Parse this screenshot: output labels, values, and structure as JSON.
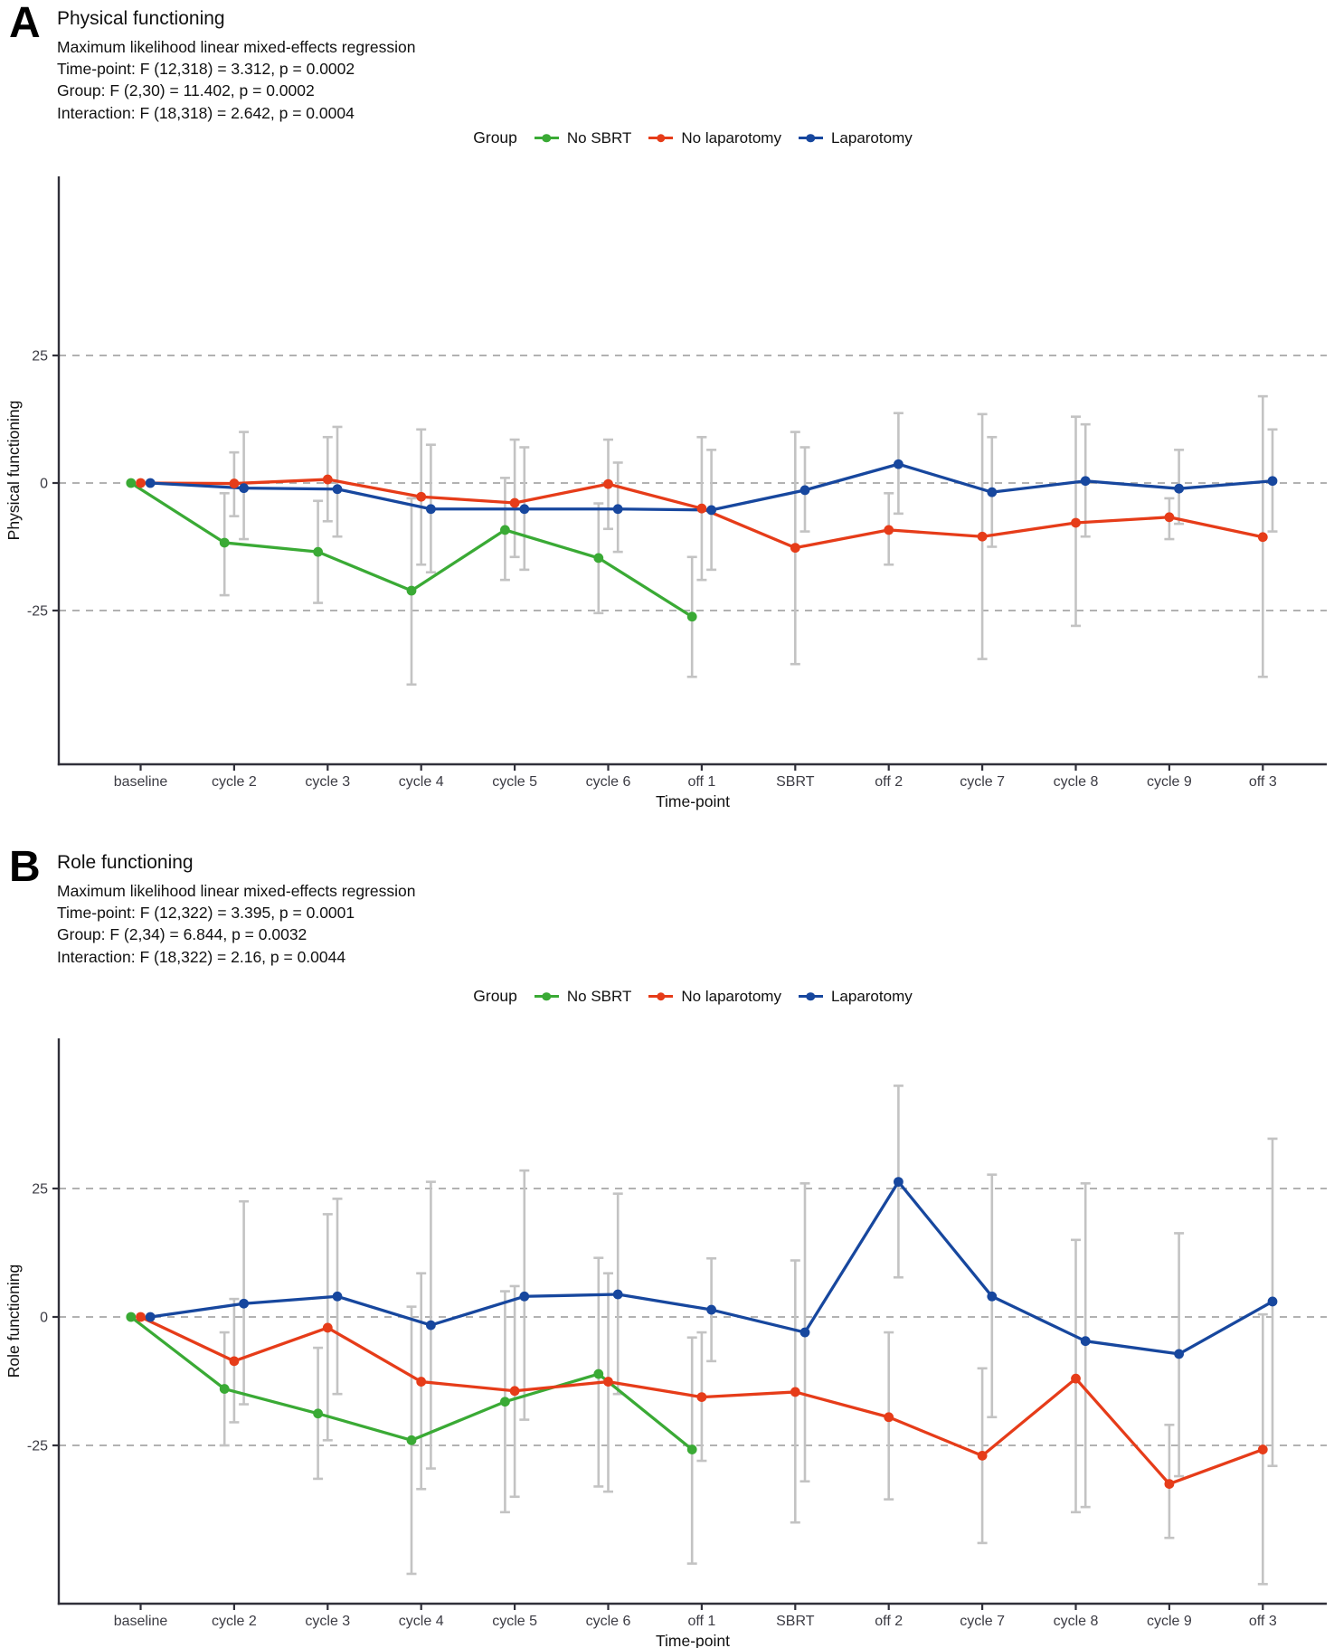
{
  "style": {
    "grid_color": "#a8a8a8",
    "axis_color": "#30303a",
    "errorbar_color": "#c3c3c3",
    "text_color": "#111111",
    "tick_text_color": "#3c3c44"
  },
  "chart_data": [
    {
      "type": "line",
      "letter": "A",
      "title": "Physical functioning",
      "subtitle_lines": [
        "Maximum likelihood linear mixed-effects regression",
        "Time-point: F (12,318) = 3.312, p = 0.0002",
        "Group: F (2,30) = 11.402, p = 0.0002",
        "Interaction: F (18,318) = 2.642, p = 0.0004"
      ],
      "legend_title": "Group",
      "legend_position": "top-center",
      "xlabel": "Time-point",
      "ylabel": "Physical functioning",
      "grid": "dashed-horizontal",
      "yticks": [
        25,
        0,
        -25
      ],
      "ylim": [
        -55,
        60
      ],
      "categories": [
        "baseline",
        "cycle 2",
        "cycle 3",
        "cycle 4",
        "cycle 5",
        "cycle 6",
        "off 1",
        "SBRT",
        "off 2",
        "cycle 7",
        "cycle 8",
        "cycle 9",
        "off 3"
      ],
      "series": [
        {
          "name": "No SBRT",
          "color": "#3aaa35",
          "values": [
            0,
            -11.7,
            -13.5,
            -21.1,
            -9.2,
            -14.7,
            -26.2,
            null,
            null,
            null,
            null,
            null,
            null
          ],
          "ci": [
            null,
            [
              -22,
              -2
            ],
            [
              -23.5,
              -3.5
            ],
            [
              -39.5,
              -3
            ],
            [
              -19,
              1
            ],
            [
              -25.5,
              -4
            ],
            [
              -38,
              -14.5
            ],
            null,
            null,
            null,
            null,
            null,
            null
          ]
        },
        {
          "name": "No laparotomy",
          "color": "#e63c19",
          "values": [
            0,
            -0.1,
            0.7,
            -2.7,
            -3.9,
            -0.2,
            -5,
            -12.7,
            -9.2,
            -10.5,
            -7.8,
            -6.7,
            -10.6
          ],
          "ci": [
            null,
            [
              -6.5,
              6
            ],
            [
              -7.5,
              9
            ],
            [
              -16,
              10.5
            ],
            [
              -14.5,
              8.5
            ],
            [
              -9,
              8.5
            ],
            [
              -19,
              9
            ],
            [
              -35.5,
              10
            ],
            [
              -16,
              -2
            ],
            [
              -34.5,
              13.5
            ],
            [
              -28,
              13
            ],
            [
              -11,
              -3
            ],
            [
              -38,
              17
            ]
          ]
        },
        {
          "name": "Laparotomy",
          "color": "#17479e",
          "values": [
            0,
            -1,
            -1.2,
            -5.1,
            -5.1,
            -5.1,
            -5.3,
            -1.4,
            3.7,
            -1.8,
            0.4,
            -1.1,
            0.4
          ],
          "ci": [
            null,
            [
              -11,
              10
            ],
            [
              -10.5,
              11
            ],
            [
              -17.5,
              7.5
            ],
            [
              -17,
              7
            ],
            [
              -13.5,
              4
            ],
            [
              -17,
              6.5
            ],
            [
              -9.5,
              7
            ],
            [
              -6,
              13.7
            ],
            [
              -12.5,
              9
            ],
            [
              -10.5,
              11.5
            ],
            [
              -8,
              6.5
            ],
            [
              -9.5,
              10.5
            ]
          ]
        }
      ]
    },
    {
      "type": "line",
      "letter": "B",
      "title": "Role functioning",
      "subtitle_lines": [
        "Maximum likelihood linear mixed-effects regression",
        "Time-point: F (12,322) = 3.395, p = 0.0001",
        "Group: F (2,34) = 6.844, p = 0.0032",
        "Interaction: F (18,322) = 2.16, p = 0.0044"
      ],
      "legend_title": "Group",
      "legend_position": "top-center",
      "xlabel": "Time-point",
      "ylabel": "Role functioning",
      "grid": "dashed-horizontal",
      "yticks": [
        25,
        0,
        -25
      ],
      "ylim": [
        -56,
        54
      ],
      "categories": [
        "baseline",
        "cycle 2",
        "cycle 3",
        "cycle 4",
        "cycle 5",
        "cycle 6",
        "off 1",
        "SBRT",
        "off 2",
        "cycle 7",
        "cycle 8",
        "cycle 9",
        "off 3"
      ],
      "series": [
        {
          "name": "No SBRT",
          "color": "#3aaa35",
          "values": [
            0,
            -14,
            -18.8,
            -24,
            -16.5,
            -11.1,
            -25.8,
            null,
            null,
            null,
            null,
            null,
            null
          ],
          "ci": [
            null,
            [
              -25,
              -3
            ],
            [
              -31.5,
              -6
            ],
            [
              -50,
              2
            ],
            [
              -38,
              5
            ],
            [
              -33,
              11.5
            ],
            [
              -48,
              -4
            ],
            null,
            null,
            null,
            null,
            null,
            null
          ]
        },
        {
          "name": "No laparotomy",
          "color": "#e63c19",
          "values": [
            0,
            -8.6,
            -2.1,
            -12.6,
            -14.4,
            -12.6,
            -15.6,
            -14.6,
            -19.5,
            -27,
            -12,
            -32.5,
            -25.8
          ],
          "ci": [
            null,
            [
              -20.5,
              3.5
            ],
            [
              -24,
              20
            ],
            [
              -33.5,
              8.5
            ],
            [
              -35,
              6
            ],
            [
              -34,
              8.5
            ],
            [
              -28,
              -3
            ],
            [
              -40,
              11
            ],
            [
              -35.5,
              -3
            ],
            [
              -44,
              -10
            ],
            [
              -38,
              15
            ],
            [
              -43,
              -21
            ],
            [
              -52,
              0.5
            ]
          ]
        },
        {
          "name": "Laparotomy",
          "color": "#17479e",
          "values": [
            0,
            2.6,
            4,
            -1.6,
            4,
            4.4,
            1.4,
            -3,
            26.3,
            4,
            -4.7,
            -7.2,
            3
          ],
          "ci": [
            null,
            [
              -17,
              22.5
            ],
            [
              -15,
              23
            ],
            [
              -29.5,
              26.3
            ],
            [
              -20,
              28.5
            ],
            [
              -15,
              24
            ],
            [
              -8.6,
              11.4
            ],
            [
              -32,
              26
            ],
            [
              7.7,
              45
            ],
            [
              -19.5,
              27.7
            ],
            [
              -37,
              26
            ],
            [
              -31,
              16.3
            ],
            [
              -29,
              34.7
            ]
          ]
        }
      ]
    }
  ]
}
